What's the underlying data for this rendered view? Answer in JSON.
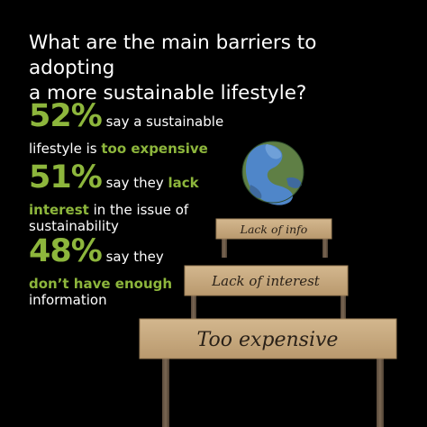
{
  "header": {
    "title_line1": "What are the main barriers to adopting",
    "title_line2": "a more sustainable lifestyle?"
  },
  "stats": [
    {
      "percent": "52%",
      "line1": "say a sustainable",
      "line2_plain": "lifestyle is ",
      "line2_highlight": "too expensive"
    },
    {
      "percent": "51%",
      "line1_plain": "say they ",
      "line1_highlight": "lack",
      "line2_highlight": "interest",
      "line2_plain": " in the issue of",
      "line3": "sustainability"
    },
    {
      "percent": "48%",
      "line1": "say they",
      "line2_highlight": "don’t have enough",
      "line3": "information"
    }
  ],
  "signs": {
    "top": "Lack of info",
    "middle": "Lack of interest",
    "bottom": "Too expensive"
  },
  "colors": {
    "background": "#000000",
    "accent_green": "#8db63c",
    "cardboard": "#c8ab82",
    "post": "#6b5a48"
  },
  "icons": {
    "globe": "earth-globe-icon"
  }
}
